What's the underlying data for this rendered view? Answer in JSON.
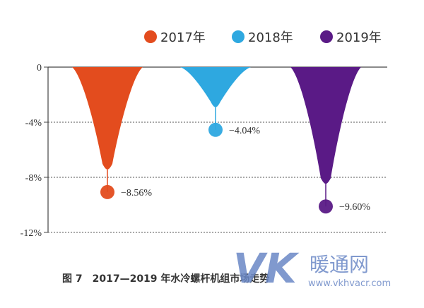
{
  "chart_data": {
    "type": "bar",
    "categories": [
      "2017年",
      "2018年",
      "2019年"
    ],
    "series": [
      {
        "name": "2017年",
        "value": -8.56,
        "label": "−8.56%",
        "color": "#e34c1e"
      },
      {
        "name": "2018年",
        "value": -4.04,
        "label": "−4.04%",
        "color": "#2ea8e0"
      },
      {
        "name": "2019年",
        "value": -9.6,
        "label": "−9.60%",
        "color": "#5a1a86"
      }
    ],
    "values": [
      -8.56,
      -4.04,
      -9.6
    ],
    "yticks": [
      {
        "value": 0,
        "label": "0"
      },
      {
        "value": -4,
        "label": "-4%"
      },
      {
        "value": -8,
        "label": "-8%"
      },
      {
        "value": -12,
        "label": "-12%"
      }
    ],
    "ylim": [
      -12,
      0
    ],
    "grid": "dotted horizontal",
    "legend_position": "top-right",
    "caption": "图 7　2017—2019 年水冷螺杆机组市场走势"
  },
  "watermark": {
    "logo_text": "VK",
    "brand_cn": "暖通网",
    "url": "www.vkhvacr.com"
  }
}
